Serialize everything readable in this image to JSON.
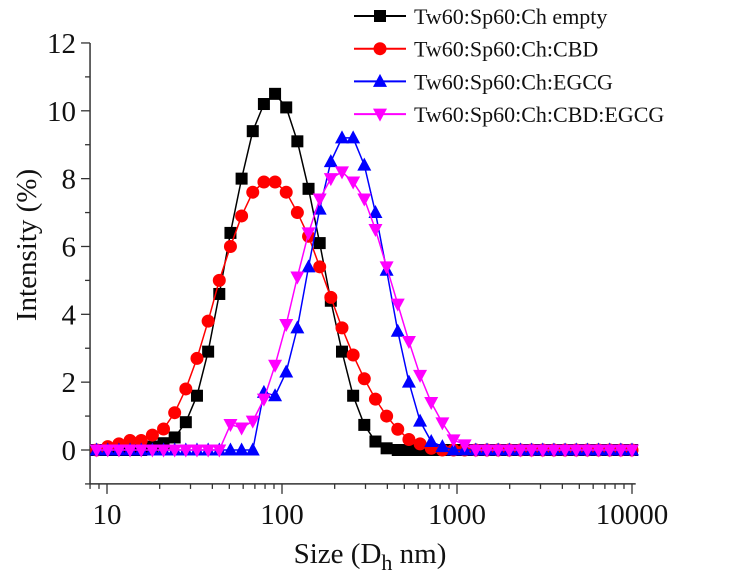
{
  "chart_data": {
    "type": "line",
    "title": "",
    "xlabel": "Size (D",
    "xlabel_sub": "h",
    "xlabel_suffix": " nm)",
    "ylabel": "Intensity (%)",
    "x_scale": "log",
    "xlim": [
      8,
      10500
    ],
    "ylim": [
      -1,
      12
    ],
    "x_ticks": [
      10,
      100,
      1000,
      10000
    ],
    "x_tick_labels": [
      "10",
      "100",
      "1000",
      "10000"
    ],
    "y_ticks": [
      0,
      2,
      4,
      6,
      8,
      10,
      12
    ],
    "y_tick_labels": [
      "0",
      "2",
      "4",
      "6",
      "8",
      "10",
      "12"
    ],
    "grid": false,
    "legend_position": "top-right",
    "x": [
      8.721,
      10.1,
      11.7,
      13.54,
      15.69,
      18.17,
      21.04,
      24.36,
      28.21,
      32.67,
      37.84,
      43.82,
      50.75,
      58.77,
      68.06,
      78.82,
      91.28,
      105.7,
      122.4,
      141.8,
      164.2,
      190.1,
      220.2,
      255.0,
      295.3,
      342.0,
      396.1,
      458.7,
      531.2,
      615.1,
      712.4,
      825.0,
      955.4,
      1106,
      1281,
      1484,
      1718,
      1990,
      2305,
      2669,
      3091,
      3580,
      4145,
      4801,
      5560,
      6439,
      7456,
      8635,
      10000
    ],
    "series": [
      {
        "name": "Tw60:Sp60:Ch empty",
        "color": "#000000",
        "marker": "square",
        "values": [
          0,
          0,
          0,
          0,
          0,
          0.1,
          0.2,
          0.37,
          0.82,
          1.6,
          2.9,
          4.6,
          6.4,
          8.0,
          9.4,
          10.2,
          10.5,
          10.1,
          9.1,
          7.7,
          6.1,
          4.4,
          2.9,
          1.6,
          0.74,
          0.25,
          0.05,
          0,
          0,
          0,
          0,
          0,
          0,
          0,
          0,
          0,
          0,
          0,
          0,
          0,
          0,
          0,
          0,
          0,
          0,
          0,
          0,
          0,
          0
        ]
      },
      {
        "name": "Tw60:Sp60:Ch:CBD",
        "color": "#ff0000",
        "marker": "circle",
        "values": [
          0,
          0.1,
          0.18,
          0.28,
          0.28,
          0.44,
          0.62,
          1.1,
          1.8,
          2.7,
          3.8,
          5.0,
          6.0,
          6.9,
          7.6,
          7.9,
          7.9,
          7.6,
          7.0,
          6.3,
          5.4,
          4.5,
          3.6,
          2.8,
          2.1,
          1.5,
          1.0,
          0.61,
          0.31,
          0.18,
          0.05,
          0,
          0,
          0,
          0,
          0,
          0,
          0,
          0,
          0,
          0,
          0,
          0,
          0,
          0,
          0,
          0,
          0,
          0
        ]
      },
      {
        "name": "Tw60:Sp60:Ch:EGCG",
        "color": "#0000ff",
        "marker": "triangle-up",
        "values": [
          0,
          0,
          0,
          0,
          0,
          0,
          0,
          0,
          0,
          0,
          0,
          0,
          0,
          0,
          0,
          1.7,
          1.6,
          2.3,
          3.6,
          5.4,
          7.1,
          8.5,
          9.2,
          9.2,
          8.4,
          7.0,
          5.3,
          3.5,
          2.0,
          0.85,
          0.25,
          0.1,
          0,
          0,
          0,
          0,
          0,
          0,
          0,
          0,
          0,
          0,
          0,
          0,
          0,
          0,
          0,
          0,
          0
        ]
      },
      {
        "name": "Tw60:Sp60:Ch:CBD:EGCG",
        "color": "#ff00ff",
        "marker": "triangle-down",
        "values": [
          0,
          0,
          0,
          0,
          0,
          0,
          0,
          0,
          0,
          0,
          0,
          0,
          0.75,
          0.65,
          0.85,
          1.5,
          2.5,
          3.7,
          5.1,
          6.4,
          7.4,
          8.0,
          8.2,
          7.9,
          7.4,
          6.5,
          5.4,
          4.3,
          3.2,
          2.2,
          1.4,
          0.8,
          0.3,
          0.15,
          0,
          0,
          0,
          0,
          0,
          0,
          0,
          0,
          0,
          0,
          0,
          0,
          0,
          0,
          0
        ]
      }
    ]
  }
}
